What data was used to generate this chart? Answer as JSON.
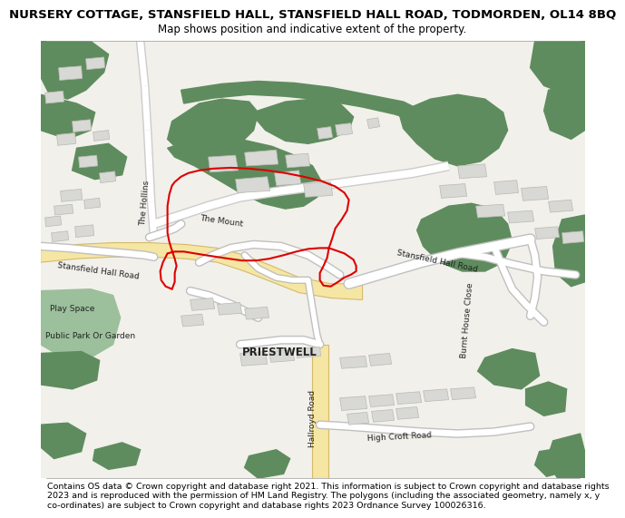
{
  "title_line1": "NURSERY COTTAGE, STANSFIELD HALL, STANSFIELD HALL ROAD, TODMORDEN, OL14 8BQ",
  "title_line2": "Map shows position and indicative extent of the property.",
  "footer_text": "Contains OS data © Crown copyright and database right 2021. This information is subject to Crown copyright and database rights 2023 and is reproduced with the permission of HM Land Registry. The polygons (including the associated geometry, namely x, y co-ordinates) are subject to Crown copyright and database rights 2023 Ordnance Survey 100026316.",
  "bg_color": "#ffffff",
  "map_bg": "#f2f0eb",
  "green_color": "#5e8c5e",
  "green_light": "#9cbf9c",
  "yellow_road": "#f5e6a3",
  "yellow_stroke": "#d4ba6a",
  "building_color": "#d8d8d4",
  "building_stroke": "#b8b8b4",
  "red_polygon": "#dd0000",
  "text_color": "#222222",
  "title_fontsize": 9.5,
  "subtitle_fontsize": 8.5,
  "footer_fontsize": 6.8,
  "label_fontsize": 6.5
}
